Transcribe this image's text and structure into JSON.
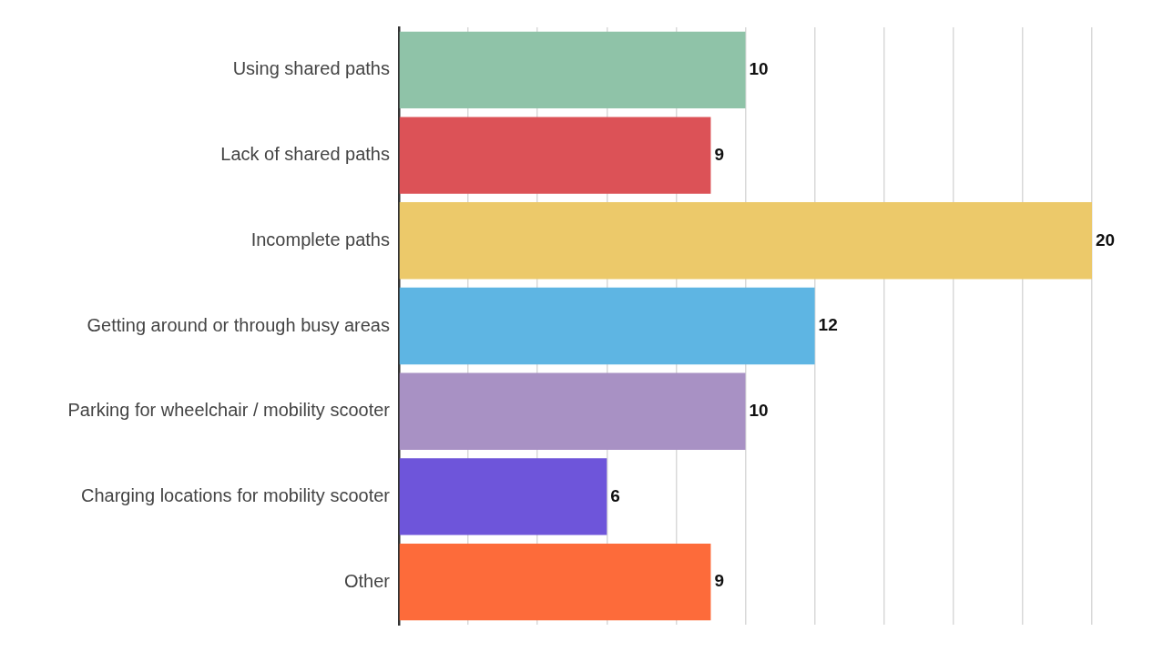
{
  "chart_data": {
    "type": "bar",
    "orientation": "horizontal",
    "categories": [
      "Using shared paths",
      "Lack of shared paths",
      "Incomplete paths",
      "Getting around or through busy areas",
      "Parking for wheelchair / mobility scooter",
      "Charging locations for mobility scooter",
      "Other"
    ],
    "values": [
      10,
      9,
      20,
      12,
      10,
      6,
      9
    ],
    "colors": [
      "#8fc3a8",
      "#dc5257",
      "#ecc96a",
      "#5eb5e3",
      "#a891c4",
      "#6e55da",
      "#fd6b3a"
    ],
    "xlim": [
      0,
      20
    ],
    "xticks": [
      {
        "value": 0,
        "label": null
      },
      {
        "value": 2,
        "label": null
      },
      {
        "value": 4,
        "label": null
      },
      {
        "value": 6,
        "label": null
      },
      {
        "value": 8,
        "label": null
      },
      {
        "value": 10,
        "label": null
      },
      {
        "value": 12,
        "label": null
      },
      {
        "value": 14,
        "label": null
      },
      {
        "value": 16,
        "label": null
      },
      {
        "value": 18,
        "label": null
      },
      {
        "value": 20,
        "label": null
      }
    ],
    "tick_labels": "y",
    "grid": "x",
    "data_labels": true,
    "legend": false
  }
}
